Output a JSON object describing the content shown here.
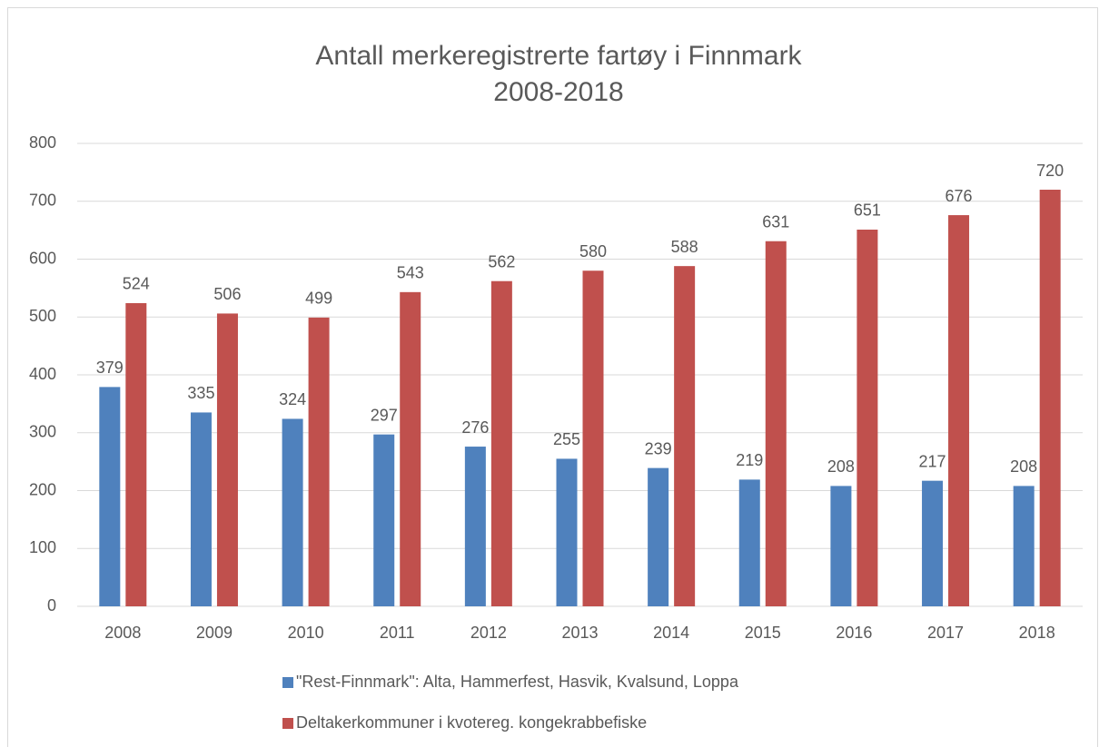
{
  "chart_data": {
    "type": "bar",
    "title": "Antall merkeregistrerte fartøy i Finnmark",
    "subtitle": "2008-2018",
    "categories": [
      "2008",
      "2009",
      "2010",
      "2011",
      "2012",
      "2013",
      "2014",
      "2015",
      "2016",
      "2017",
      "2018"
    ],
    "series": [
      {
        "name": "\"Rest-Finnmark\": Alta, Hammerfest, Hasvik, Kvalsund, Loppa",
        "color": "#4f81bd",
        "values": [
          379,
          335,
          324,
          297,
          276,
          255,
          239,
          219,
          208,
          217,
          208
        ]
      },
      {
        "name": "Deltakerkommuner i kvotereg. kongekrabbefiske",
        "color": "#c0504d",
        "values": [
          524,
          506,
          499,
          543,
          562,
          580,
          588,
          631,
          651,
          676,
          720
        ]
      }
    ],
    "ylim": [
      0,
      800
    ],
    "yticks": [
      0,
      100,
      200,
      300,
      400,
      500,
      600,
      700,
      800
    ],
    "grid": true,
    "legend": "bottom"
  }
}
